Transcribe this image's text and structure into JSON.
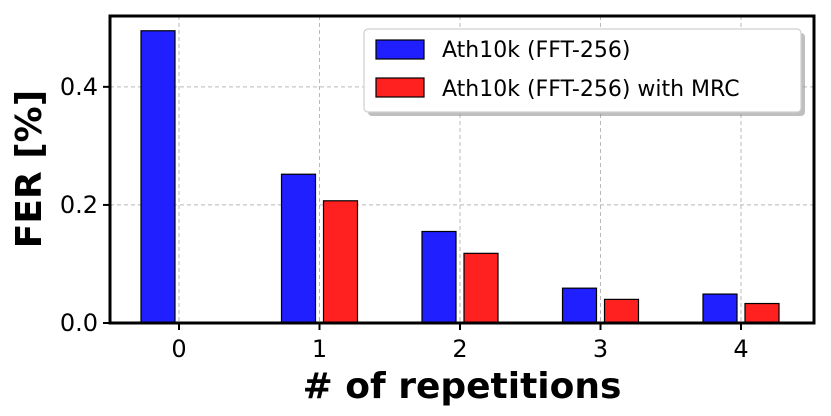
{
  "chart_data": {
    "type": "bar",
    "categories": [
      "0",
      "1",
      "2",
      "3",
      "4"
    ],
    "series": [
      {
        "name": "Ath10k (FFT-256)",
        "color": "#1f1fff",
        "values": [
          0.495,
          0.252,
          0.155,
          0.059,
          0.049
        ]
      },
      {
        "name": "Ath10k (FFT-256) with MRC",
        "color": "#ff2020",
        "values": [
          null,
          0.207,
          0.118,
          0.04,
          0.033
        ]
      }
    ],
    "yticks": [
      "0.0",
      "0.2",
      "0.4"
    ],
    "ytick_values": [
      0.0,
      0.2,
      0.4
    ],
    "xlabel": "# of repetitions",
    "ylabel": "FER [%]",
    "ylim": [
      0,
      0.52
    ],
    "grid": true,
    "legend_position": "top-right"
  }
}
